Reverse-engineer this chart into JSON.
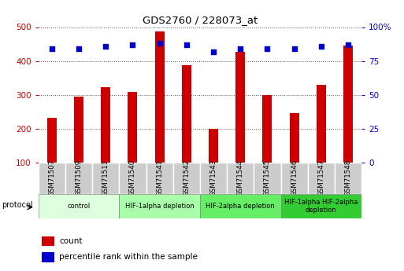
{
  "title": "GDS2760 / 228073_at",
  "samples": [
    "GSM71507",
    "GSM71509",
    "GSM71511",
    "GSM71540",
    "GSM71541",
    "GSM71542",
    "GSM71543",
    "GSM71544",
    "GSM71545",
    "GSM71546",
    "GSM71547",
    "GSM71548"
  ],
  "counts": [
    232,
    295,
    322,
    308,
    487,
    388,
    200,
    428,
    300,
    247,
    330,
    445
  ],
  "percentile_ranks": [
    84,
    84,
    86,
    87,
    88,
    87,
    82,
    84,
    84,
    84,
    86,
    87
  ],
  "bar_color": "#cc0000",
  "dot_color": "#0000cc",
  "ylim_left": [
    100,
    500
  ],
  "ylim_right": [
    0,
    100
  ],
  "yticks_left": [
    100,
    200,
    300,
    400,
    500
  ],
  "yticks_right": [
    0,
    25,
    50,
    75,
    100
  ],
  "groups": [
    {
      "label": "control",
      "start": 0,
      "end": 3,
      "color": "#ddffdd"
    },
    {
      "label": "HIF-1alpha depletion",
      "start": 3,
      "end": 6,
      "color": "#aaffaa"
    },
    {
      "label": "HIF-2alpha depletion",
      "start": 6,
      "end": 9,
      "color": "#66ee66"
    },
    {
      "label": "HIF-1alpha HIF-2alpha\ndepletion",
      "start": 9,
      "end": 12,
      "color": "#33cc33"
    }
  ],
  "protocol_label": "protocol",
  "legend_count_label": "count",
  "legend_pct_label": "percentile rank within the sample",
  "background_color": "#ffffff",
  "grid_color": "#555555",
  "tick_label_color_left": "#cc0000",
  "tick_label_color_right": "#0000cc",
  "bar_bottom": 100,
  "sample_box_color": "#cccccc",
  "bar_width": 0.35
}
